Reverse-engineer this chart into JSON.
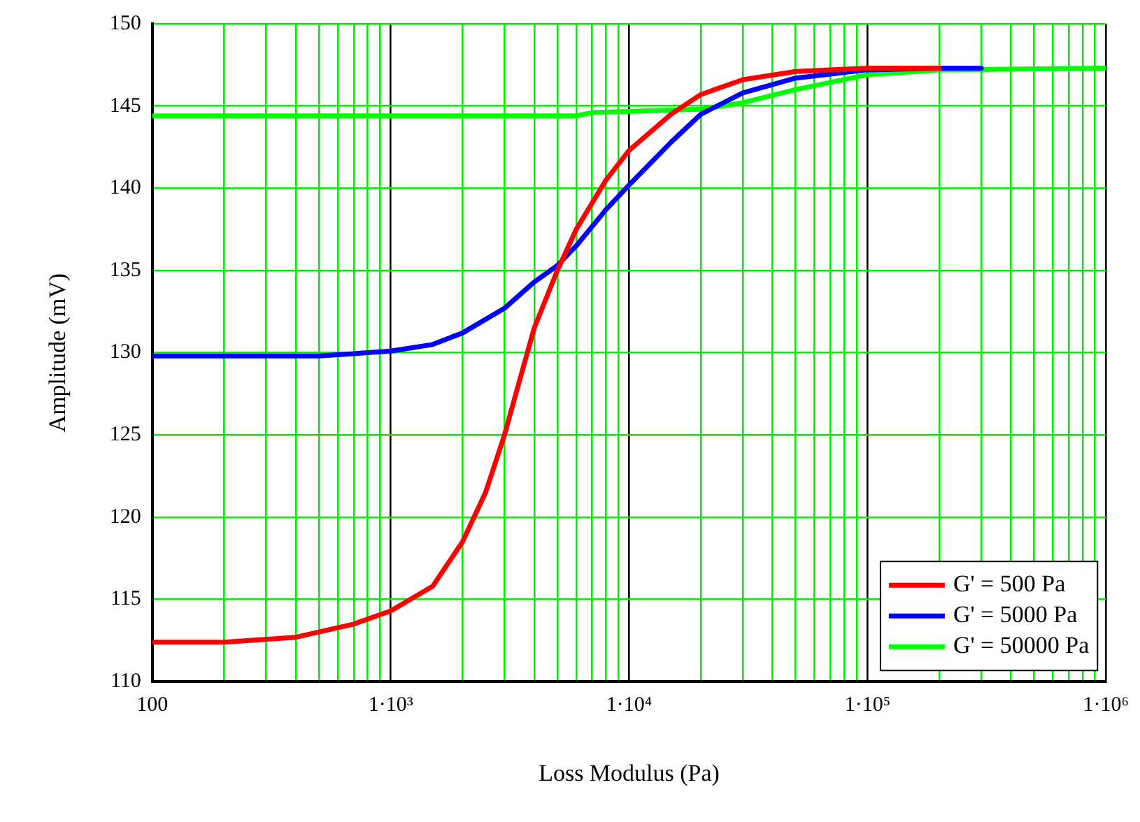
{
  "chart_data": {
    "type": "line",
    "xlabel": "Loss Modulus (Pa)",
    "ylabel": "Amplitude (mV)",
    "log": "x",
    "grid": true,
    "legend": "bottom right",
    "marker": "none",
    "line_style": "solid",
    "xlim": [
      100,
      1000000
    ],
    "ylim": [
      110,
      150
    ],
    "xticks": [
      100,
      {
        "value": 200,
        "label": null
      },
      {
        "value": 300,
        "label": null
      },
      {
        "value": 400,
        "label": null
      },
      {
        "value": 500,
        "label": null
      },
      {
        "value": 600,
        "label": null
      },
      {
        "value": 700,
        "label": null
      },
      {
        "value": 800,
        "label": null
      },
      {
        "value": 900,
        "label": null
      },
      {
        "value": 1000,
        "label": "1·10³"
      },
      {
        "value": 2000,
        "label": null
      },
      {
        "value": 3000,
        "label": null
      },
      {
        "value": 4000,
        "label": null
      },
      {
        "value": 5000,
        "label": null
      },
      {
        "value": 6000,
        "label": null
      },
      {
        "value": 7000,
        "label": null
      },
      {
        "value": 8000,
        "label": null
      },
      {
        "value": 9000,
        "label": null
      },
      {
        "value": 10000,
        "label": "1·10⁴"
      },
      {
        "value": 20000,
        "label": null
      },
      {
        "value": 30000,
        "label": null
      },
      {
        "value": 40000,
        "label": null
      },
      {
        "value": 50000,
        "label": null
      },
      {
        "value": 60000,
        "label": null
      },
      {
        "value": 70000,
        "label": null
      },
      {
        "value": 80000,
        "label": null
      },
      {
        "value": 90000,
        "label": null
      },
      {
        "value": 100000,
        "label": "1·10⁵"
      },
      {
        "value": 200000,
        "label": null
      },
      {
        "value": 300000,
        "label": null
      },
      {
        "value": 400000,
        "label": null
      },
      {
        "value": 500000,
        "label": null
      },
      {
        "value": 600000,
        "label": null
      },
      {
        "value": 700000,
        "label": null
      },
      {
        "value": 800000,
        "label": null
      },
      {
        "value": 900000,
        "label": null
      },
      {
        "value": 1000000,
        "label": "1·10⁶"
      }
    ],
    "yticks": [
      110,
      115,
      120,
      125,
      130,
      135,
      140,
      145,
      150
    ],
    "series": [
      {
        "name": "G' = 500 Pa",
        "color": "#ff0000",
        "x": [
          100,
          200,
          400,
          700,
          1000,
          1500,
          2000,
          2500,
          3000,
          3500,
          4000,
          5000,
          6000,
          8000,
          10000,
          15000,
          20000,
          30000,
          50000,
          100000,
          200000
        ],
        "values": [
          112.4,
          112.4,
          112.7,
          113.5,
          114.3,
          115.8,
          118.5,
          121.5,
          125,
          128.5,
          131.5,
          135,
          137.5,
          140.5,
          142.3,
          144.5,
          145.7,
          146.6,
          147.1,
          147.3,
          147.3
        ]
      },
      {
        "name": "G' = 5000 Pa",
        "color": "#0000ff",
        "x": [
          100,
          500,
          800,
          1000,
          1500,
          2000,
          3000,
          4000,
          5000,
          6000,
          8000,
          10000,
          15000,
          20000,
          30000,
          50000,
          100000,
          200000,
          300000
        ],
        "values": [
          129.8,
          129.8,
          130,
          130.1,
          130.5,
          131.2,
          132.7,
          134.3,
          135.3,
          136.5,
          138.7,
          140.2,
          142.8,
          144.5,
          145.8,
          146.7,
          147.2,
          147.3,
          147.3
        ]
      },
      {
        "name": "G' = 50000 Pa",
        "color": "#00ff00",
        "x": [
          100,
          6000,
          7000,
          20000,
          30000,
          50000,
          100000,
          200000,
          1000000
        ],
        "values": [
          144.4,
          144.4,
          144.6,
          144.8,
          145.2,
          146,
          146.9,
          147.2,
          147.3
        ]
      }
    ]
  }
}
